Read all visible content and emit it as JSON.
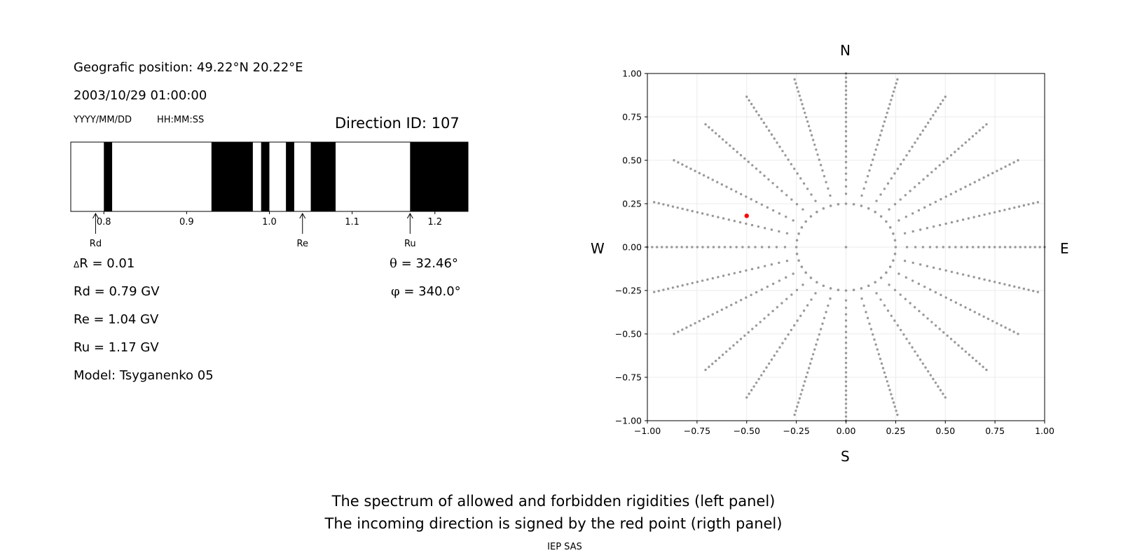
{
  "info": {
    "position": "Geografic position: 49.22°N 20.22°E",
    "datetime": "2003/10/29 01:00:00",
    "date_format": "YYYY/MM/DD",
    "time_format": "HH:MM:SS",
    "direction_id": "Direction ID: 107"
  },
  "stats": {
    "delta_symbol": "Δ",
    "delta_r": "R = 0.01",
    "rd": "Rd = 0.79 GV",
    "re": "Re = 1.04 GV",
    "ru": "Ru = 1.17 GV",
    "model": "Model: Tsyganenko 05",
    "theta_symbol": "θ",
    "theta": " = 32.46°",
    "phi_symbol": "φ",
    "phi": " = 340.0°"
  },
  "footer": {
    "line1": "The spectrum of allowed and forbidden rigidities (left panel)",
    "line2": "The incoming direction is signed by the red point (rigth panel)",
    "credit": "IEP SAS"
  },
  "chart_data": [
    {
      "type": "bar",
      "description_label": "rigidity spectrum",
      "xlim": [
        0.76,
        1.24
      ],
      "ticks": [
        0.8,
        0.9,
        1.0,
        1.1,
        1.2
      ],
      "tick_labels": [
        "0.8",
        "0.9",
        "1.0",
        "1.1",
        "1.2"
      ],
      "forbidden_intervals": [
        [
          0.8,
          0.81
        ],
        [
          0.93,
          0.98
        ],
        [
          0.99,
          1.0
        ],
        [
          1.02,
          1.03
        ],
        [
          1.05,
          1.08
        ],
        [
          1.17,
          1.24
        ]
      ],
      "markers": [
        {
          "label": "Rd",
          "value": 0.79
        },
        {
          "label": "Re",
          "value": 1.04
        },
        {
          "label": "Ru",
          "value": 1.17
        }
      ],
      "colors": {
        "forbidden": "#000000",
        "allowed": "#ffffff"
      }
    },
    {
      "type": "scatter",
      "xlim": [
        -1.0,
        1.0
      ],
      "ylim": [
        -1.0,
        1.0
      ],
      "x_ticks": [
        "−1.00",
        "−0.75",
        "−0.50",
        "−0.25",
        "0.00",
        "0.25",
        "0.50",
        "0.75",
        "1.00"
      ],
      "y_ticks": [
        "1.00",
        "0.75",
        "0.50",
        "0.25",
        "0.00",
        "−0.25",
        "−0.50",
        "−0.75",
        "−1.00"
      ],
      "grid": true,
      "compass": {
        "north": "N",
        "south": "S",
        "east": "E",
        "west": "W"
      },
      "grid_directions": {
        "inner_ring_radius": 0.25,
        "inner_ring_points": 40,
        "spokes": 24,
        "spoke_radius_start": 0.25,
        "spoke_points": 25
      },
      "highlight": {
        "x": -0.5,
        "y": 0.18,
        "color": "#ff0000"
      },
      "colors": {
        "grid_points": "#999999"
      }
    }
  ]
}
